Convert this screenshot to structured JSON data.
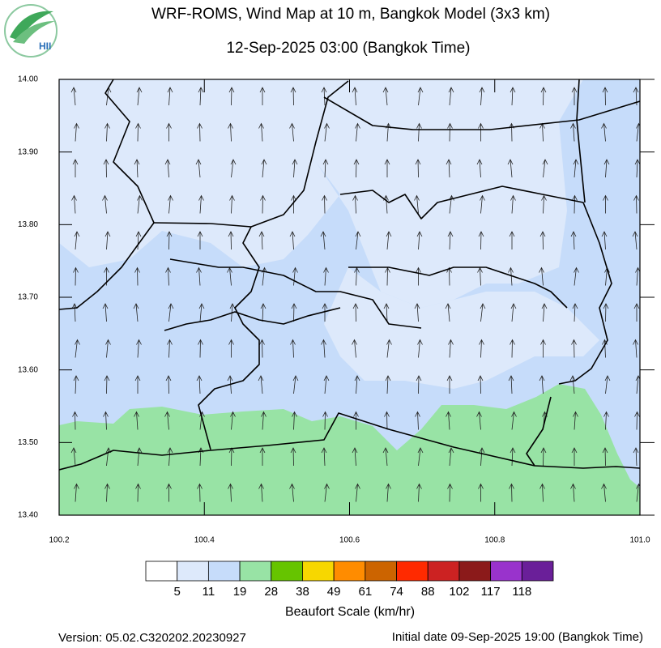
{
  "header": {
    "title": "WRF-ROMS, Wind Map at 10 m, Bangkok Model (3x3 km)",
    "subtitle": "12-Sep-2025 03:00 (Bangkok Time)",
    "logo_text": "HII"
  },
  "map": {
    "xlim": [
      100.2,
      101.0
    ],
    "ylim": [
      13.4,
      14.0
    ],
    "xticks": [
      100.2,
      100.4,
      100.6,
      100.8,
      {
        "value": 101.0,
        "label": "101.0"
      }
    ],
    "yticks": [
      {
        "value": 13.4,
        "label": "13.40"
      },
      {
        "value": 13.5,
        "label": "13.50"
      },
      {
        "value": 13.6,
        "label": "13.60"
      },
      {
        "value": 13.7,
        "label": "13.70"
      },
      {
        "value": 13.8,
        "label": "13.80"
      },
      {
        "value": 13.9,
        "label": "13.90"
      },
      {
        "value": 14.0,
        "label": "14.00"
      }
    ]
  },
  "legend": {
    "title": "Beaufort Scale (km/hr)",
    "colors": [
      "#ffffff",
      "#dde9fb",
      "#c6dcfa",
      "#98e3a5",
      "#66c400",
      "#f7d700",
      "#ff8c00",
      "#cc6400",
      "#ff2a00",
      "#cc2222",
      "#8b1a1a",
      "#9933cc",
      "#6a1f99"
    ],
    "labels": [
      5,
      11,
      19,
      28,
      38,
      49,
      61,
      74,
      88,
      102,
      117,
      118
    ]
  },
  "footer": {
    "version": "Version: 05.02.C320202.20230927",
    "initial_date": "Initial date 09-Sep-2025 19:00 (Bangkok Time)"
  }
}
